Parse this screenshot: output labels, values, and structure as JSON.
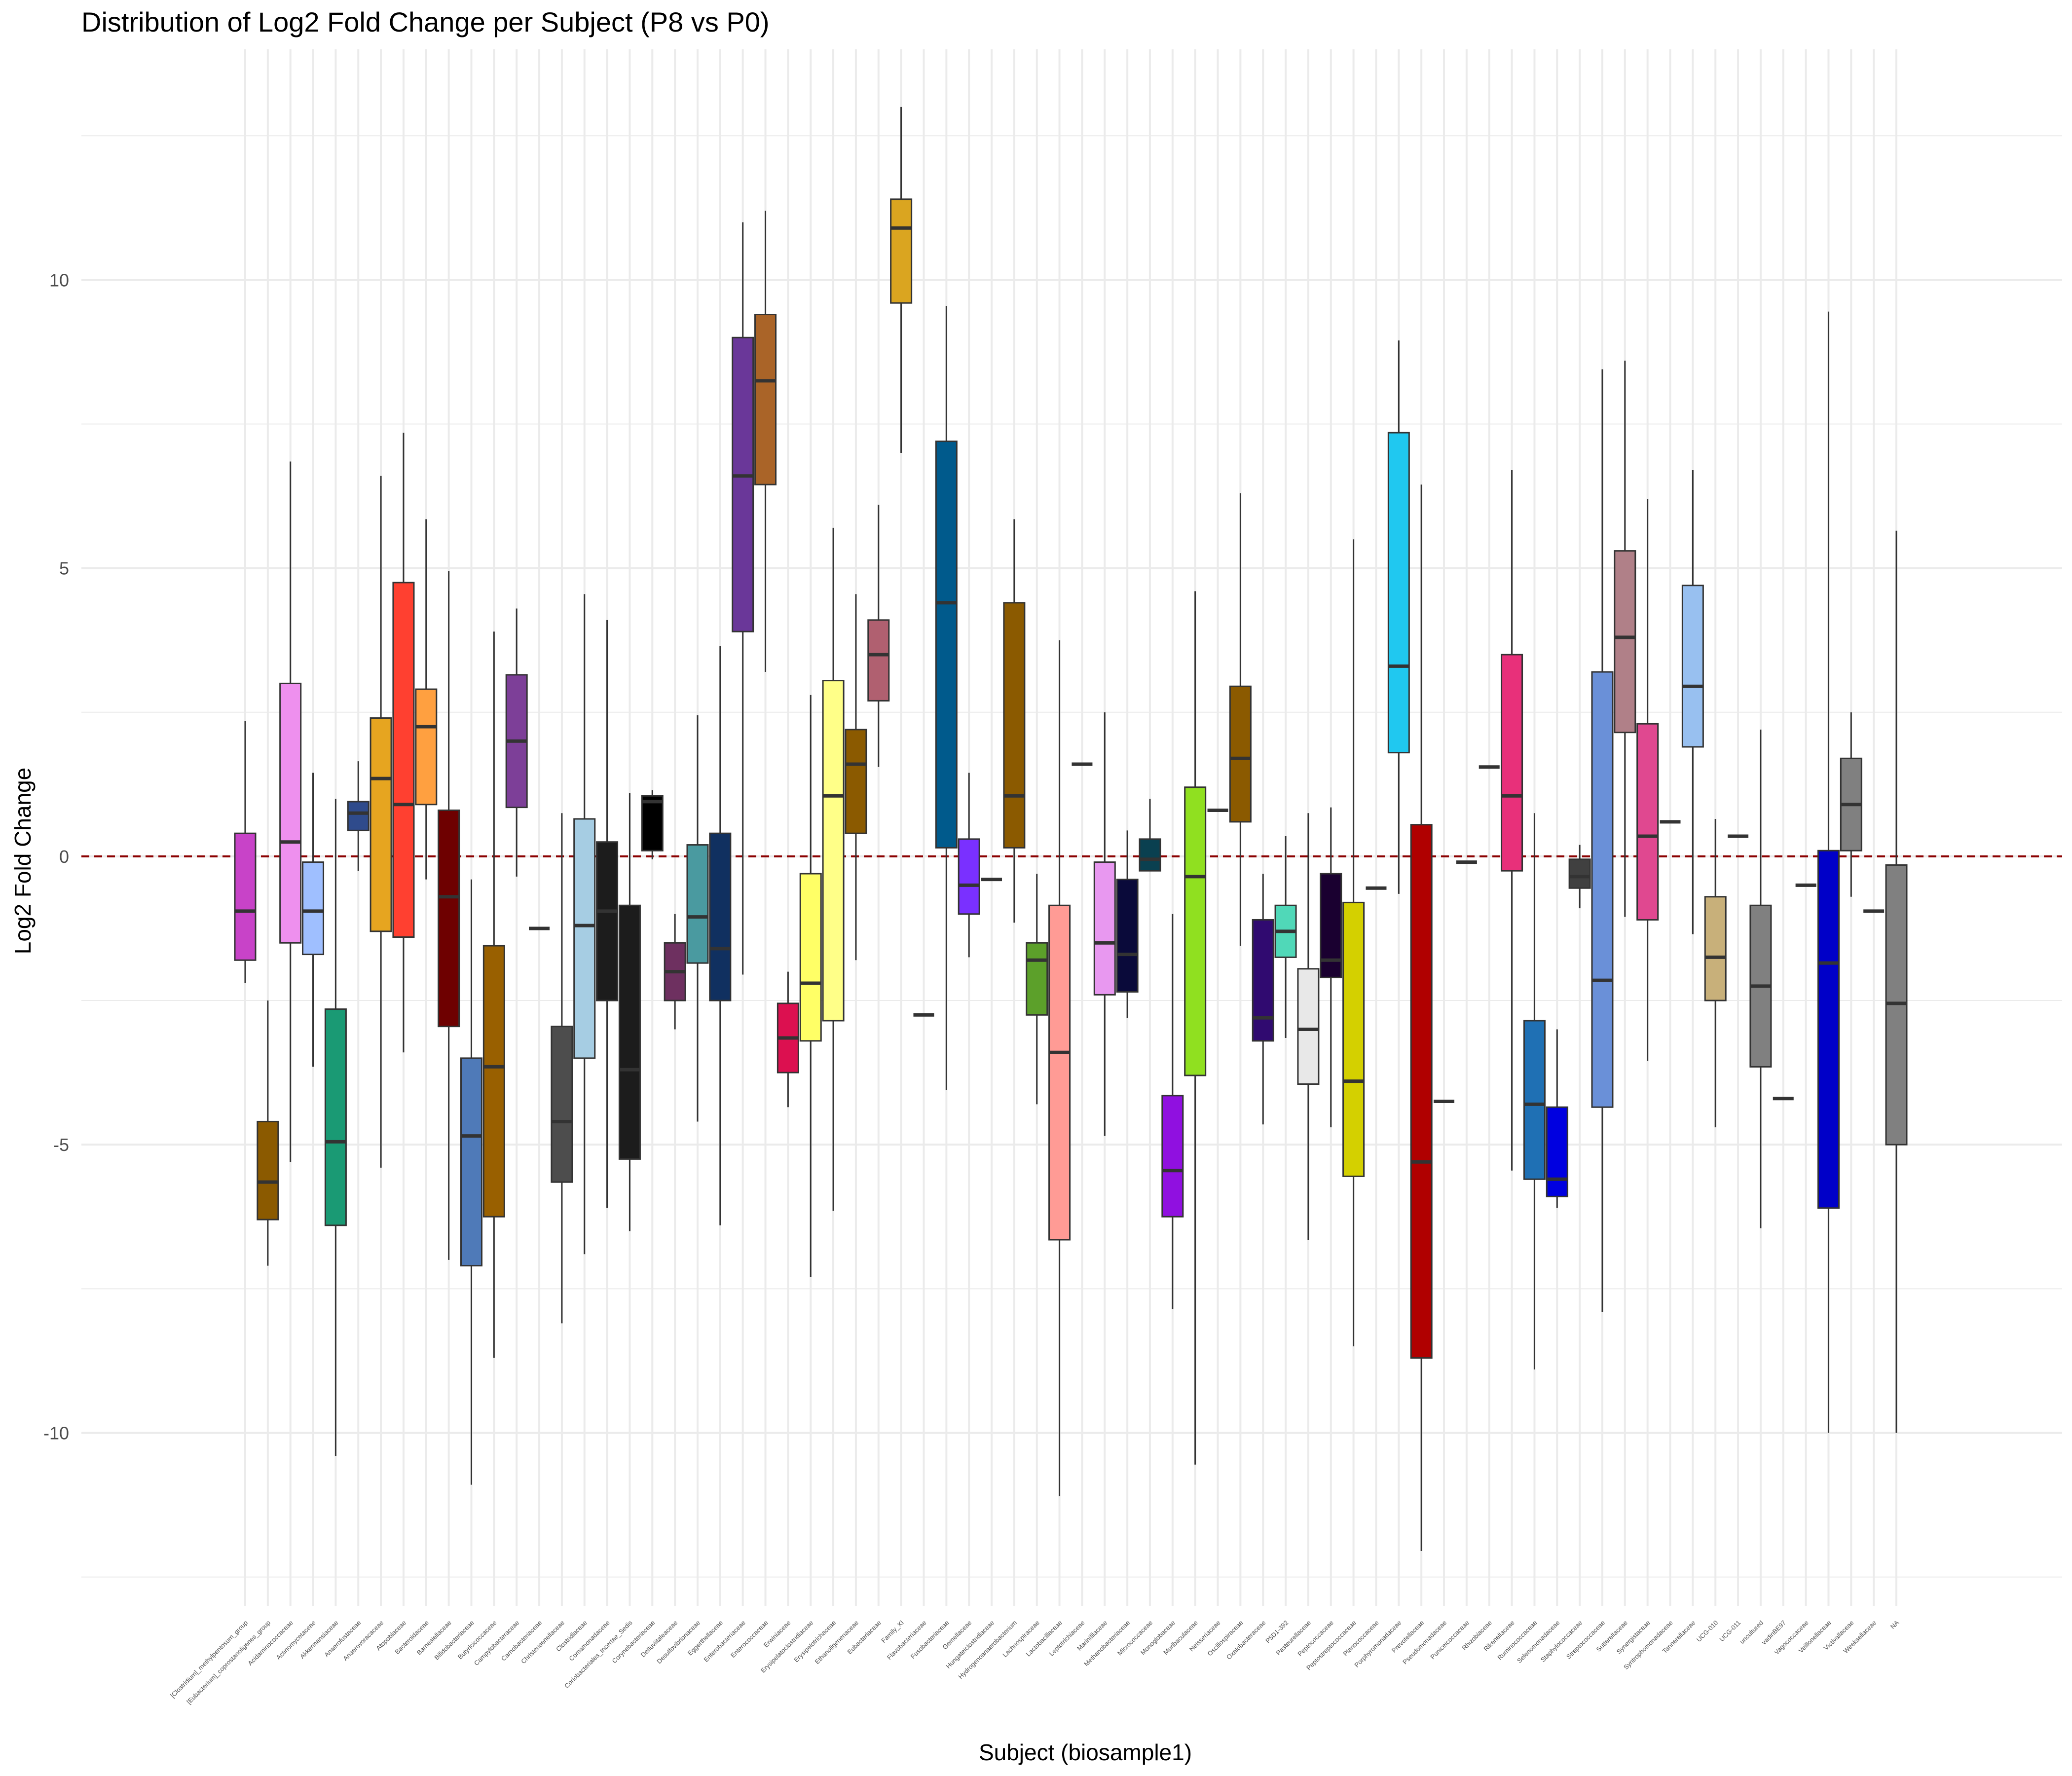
{
  "chart_data": {
    "type": "box",
    "title": "Distribution of Log2 Fold Change per Subject (P8 vs P0)",
    "xlabel": "Subject (biosample1)",
    "ylabel": "Log2 Fold Change",
    "ylim": [
      -13,
      14
    ],
    "yticks": [
      -10,
      -5,
      0,
      5,
      10
    ],
    "grid": true,
    "legend": "none",
    "reference_line": {
      "y": 0,
      "style": "dashed",
      "color": "#8b0000"
    },
    "boxes": [
      {
        "category": "[Clostridium]_methylpentosum_group",
        "color": "#c843c8",
        "min": -2.2,
        "q1": -1.8,
        "median": -0.95,
        "q3": 0.4,
        "max": 2.35
      },
      {
        "category": "[Eubacterium]_coprostanoligenes_group",
        "color": "#8b5a00",
        "min": -7.1,
        "q1": -6.3,
        "median": -5.65,
        "q3": -4.6,
        "max": -2.5
      },
      {
        "category": "Acidaminococcaceae",
        "color": "#ee90ee",
        "min": -5.3,
        "q1": -1.5,
        "median": 0.25,
        "q3": 3.0,
        "max": 6.85
      },
      {
        "category": "Actinomycetaceae",
        "color": "#9fbfff",
        "min": -3.65,
        "q1": -1.7,
        "median": -0.95,
        "q3": -0.1,
        "max": 1.45
      },
      {
        "category": "Akkermansiaceae",
        "color": "#1a9a74",
        "min": -10.4,
        "q1": -6.4,
        "median": -4.95,
        "q3": -2.65,
        "max": 1.0
      },
      {
        "category": "Anaerofustaceae",
        "color": "#2f4b8c",
        "min": -0.25,
        "q1": 0.45,
        "median": 0.75,
        "q3": 0.95,
        "max": 1.65
      },
      {
        "category": "Anaerovoracaceae",
        "color": "#e6a520",
        "min": -5.4,
        "q1": -1.3,
        "median": 1.35,
        "q3": 2.4,
        "max": 6.6
      },
      {
        "category": "Atopobiaceae",
        "color": "#ff4030",
        "min": -3.4,
        "q1": -1.4,
        "median": 0.9,
        "q3": 4.75,
        "max": 7.35
      },
      {
        "category": "Bacteroidaceae",
        "color": "#ffa040",
        "min": -0.4,
        "q1": 0.9,
        "median": 2.25,
        "q3": 2.9,
        "max": 5.85
      },
      {
        "category": "Barnesiellaceae",
        "color": "#6e0000",
        "min": -7.0,
        "q1": -2.95,
        "median": -0.7,
        "q3": 0.8,
        "max": 4.95
      },
      {
        "category": "Bifidobacteriaceae",
        "color": "#4f7ab8",
        "min": -10.9,
        "q1": -7.1,
        "median": -4.85,
        "q3": -3.5,
        "max": -0.4
      },
      {
        "category": "Butyricicoccaceae",
        "color": "#996000",
        "min": -8.7,
        "q1": -6.25,
        "median": -3.65,
        "q3": -1.55,
        "max": 3.9
      },
      {
        "category": "Campylobacteraceae",
        "color": "#7d3f98",
        "min": -0.35,
        "q1": 0.85,
        "median": 2.0,
        "q3": 3.15,
        "max": 4.3
      },
      {
        "category": "Carnobacteriaceae",
        "color": "#000000",
        "min": -1.25,
        "q1": -1.25,
        "median": -1.25,
        "q3": -1.25,
        "max": -1.25
      },
      {
        "category": "Christensenellaceae",
        "color": "#4d4d4d",
        "min": -8.1,
        "q1": -5.65,
        "median": -4.6,
        "q3": -2.95,
        "max": 0.75
      },
      {
        "category": "Clostridiaceae",
        "color": "#a6cde3",
        "min": -6.9,
        "q1": -3.5,
        "median": -1.2,
        "q3": 0.65,
        "max": 4.55
      },
      {
        "category": "Comamonadaceae",
        "color": "#1c1c1c",
        "min": -6.1,
        "q1": -2.5,
        "median": -0.95,
        "q3": 0.25,
        "max": 4.1
      },
      {
        "category": "Coriobacteriales_Incertae_Sedis",
        "color": "#1c1c1c",
        "min": -6.5,
        "q1": -5.25,
        "median": -3.7,
        "q3": -0.85,
        "max": 1.1
      },
      {
        "category": "Corynebacteriaceae",
        "color": "#000000",
        "min": -0.05,
        "q1": 0.1,
        "median": 0.95,
        "q3": 1.05,
        "max": 1.15
      },
      {
        "category": "Defluviitaleaceae",
        "color": "#6e3060",
        "min": -3.0,
        "q1": -2.5,
        "median": -2.0,
        "q3": -1.5,
        "max": -1.0
      },
      {
        "category": "Desulfovibrionaceae",
        "color": "#4a9aa0",
        "min": -4.6,
        "q1": -1.85,
        "median": -1.05,
        "q3": 0.2,
        "max": 2.45
      },
      {
        "category": "Eggerthellaceae",
        "color": "#103060",
        "min": -6.4,
        "q1": -2.5,
        "median": -1.6,
        "q3": 0.4,
        "max": 3.65
      },
      {
        "category": "Enterobacteriaceae",
        "color": "#6a3799",
        "min": -2.05,
        "q1": 3.9,
        "median": 6.6,
        "q3": 9.0,
        "max": 11.0
      },
      {
        "category": "Enterococcaceae",
        "color": "#aa6428",
        "min": 3.2,
        "q1": 6.45,
        "median": 8.25,
        "q3": 9.4,
        "max": 11.2
      },
      {
        "category": "Erwiniaceae",
        "color": "#dc1050",
        "min": -4.35,
        "q1": -3.75,
        "median": -3.15,
        "q3": -2.55,
        "max": -2.0
      },
      {
        "category": "Erysipelatoclostridiaceae",
        "color": "#ffff66",
        "min": -7.3,
        "q1": -3.2,
        "median": -2.2,
        "q3": -0.3,
        "max": 2.8
      },
      {
        "category": "Erysipelotrichaceae",
        "color": "#ffff88",
        "min": -6.15,
        "q1": -2.85,
        "median": 1.05,
        "q3": 3.05,
        "max": 5.7
      },
      {
        "category": "Ethanoligenenaceae",
        "color": "#8b5a00",
        "min": -1.8,
        "q1": 0.4,
        "median": 1.6,
        "q3": 2.2,
        "max": 4.55
      },
      {
        "category": "Eubacteriaceae",
        "color": "#b06070",
        "min": 1.55,
        "q1": 2.7,
        "median": 3.5,
        "q3": 4.1,
        "max": 6.1
      },
      {
        "category": "Family_XI",
        "color": "#daa520",
        "min": 7.0,
        "q1": 9.6,
        "median": 10.9,
        "q3": 11.4,
        "max": 13.0
      },
      {
        "category": "Flavobacteriaceae",
        "color": "#000000",
        "min": -2.75,
        "q1": -2.75,
        "median": -2.75,
        "q3": -2.75,
        "max": -2.75
      },
      {
        "category": "Fusobacteriaceae",
        "color": "#005a8c",
        "min": -4.05,
        "q1": 0.15,
        "median": 4.4,
        "q3": 7.2,
        "max": 9.55
      },
      {
        "category": "Gemellaceae",
        "color": "#7a30ff",
        "min": -1.75,
        "q1": -1.0,
        "median": -0.5,
        "q3": 0.3,
        "max": 1.45
      },
      {
        "category": "Hungateiclostridiaceae",
        "color": "#000000",
        "min": -0.4,
        "q1": -0.4,
        "median": -0.4,
        "q3": -0.4,
        "max": -0.4
      },
      {
        "category": "Hydrogenoanaerobacterium",
        "color": "#8b5a00",
        "min": -1.15,
        "q1": 0.15,
        "median": 1.05,
        "q3": 4.4,
        "max": 5.85
      },
      {
        "category": "Lachnospiraceae",
        "color": "#5ca02a",
        "min": -4.3,
        "q1": -2.75,
        "median": -1.8,
        "q3": -1.5,
        "max": -0.3
      },
      {
        "category": "Lactobacillaceae",
        "color": "#ff9b95",
        "min": -11.1,
        "q1": -6.65,
        "median": -3.4,
        "q3": -0.85,
        "max": 3.75
      },
      {
        "category": "Leptotrichiaceae",
        "color": "#000000",
        "min": 1.6,
        "q1": 1.6,
        "median": 1.6,
        "q3": 1.6,
        "max": 1.6
      },
      {
        "category": "Marinifilaceae",
        "color": "#e898f0",
        "min": -4.85,
        "q1": -2.4,
        "median": -1.5,
        "q3": -0.1,
        "max": 2.5
      },
      {
        "category": "Methanobacteriaceae",
        "color": "#0a0a3a",
        "min": -2.8,
        "q1": -2.35,
        "median": -1.7,
        "q3": -0.4,
        "max": 0.45
      },
      {
        "category": "Micrococcaceae",
        "color": "#0a4050",
        "min": -0.25,
        "q1": -0.25,
        "median": -0.05,
        "q3": 0.3,
        "max": 1.0
      },
      {
        "category": "Monoglobaceae",
        "color": "#9010e0",
        "min": -7.85,
        "q1": -6.25,
        "median": -5.45,
        "q3": -4.15,
        "max": -1.0
      },
      {
        "category": "Muribaculaceae",
        "color": "#90e020",
        "min": -10.55,
        "q1": -3.8,
        "median": -0.35,
        "q3": 1.2,
        "max": 4.6
      },
      {
        "category": "Neisseriaceae",
        "color": "#000000",
        "min": 0.8,
        "q1": 0.8,
        "median": 0.8,
        "q3": 0.8,
        "max": 0.8
      },
      {
        "category": "Oscillospiraceae",
        "color": "#8b5a00",
        "min": -1.55,
        "q1": 0.6,
        "median": 1.7,
        "q3": 2.95,
        "max": 6.3
      },
      {
        "category": "Oxalobacteraceae",
        "color": "#300a70",
        "min": -4.65,
        "q1": -3.2,
        "median": -2.8,
        "q3": -1.1,
        "max": -0.3
      },
      {
        "category": "P5D1-392",
        "color": "#50d8b8",
        "min": -3.15,
        "q1": -1.75,
        "median": -1.3,
        "q3": -0.85,
        "max": 0.35
      },
      {
        "category": "Pasteurellaceae",
        "color": "#e8e8e8",
        "min": -6.65,
        "q1": -3.95,
        "median": -3.0,
        "q3": -1.95,
        "max": 0.75
      },
      {
        "category": "Peptococcaceae",
        "color": "#1a0030",
        "min": -4.7,
        "q1": -2.1,
        "median": -1.8,
        "q3": -0.3,
        "max": 0.85
      },
      {
        "category": "Peptostreptococcaceae",
        "color": "#d4d000",
        "min": -8.5,
        "q1": -5.55,
        "median": -3.9,
        "q3": -0.8,
        "max": 5.5
      },
      {
        "category": "Planococcaceae",
        "color": "#000000",
        "min": -0.55,
        "q1": -0.55,
        "median": -0.55,
        "q3": -0.55,
        "max": -0.55
      },
      {
        "category": "Porphyromonadaceae",
        "color": "#20c8f0",
        "min": -0.65,
        "q1": 1.8,
        "median": 3.3,
        "q3": 7.35,
        "max": 8.95
      },
      {
        "category": "Prevotellaceae",
        "color": "#b00000",
        "min": -12.05,
        "q1": -8.7,
        "median": -5.3,
        "q3": 0.55,
        "max": 6.45
      },
      {
        "category": "Pseudomonadaceae",
        "color": "#000000",
        "min": -4.25,
        "q1": -4.25,
        "median": -4.25,
        "q3": -4.25,
        "max": -4.25
      },
      {
        "category": "Puniceicoccaceae",
        "color": "#000000",
        "min": -0.1,
        "q1": -0.1,
        "median": -0.1,
        "q3": -0.1,
        "max": -0.1
      },
      {
        "category": "Rhizobiaceae",
        "color": "#000000",
        "min": 1.55,
        "q1": 1.55,
        "median": 1.55,
        "q3": 1.55,
        "max": 1.55
      },
      {
        "category": "Rikenellaceae",
        "color": "#e8307a",
        "min": -5.45,
        "q1": -0.25,
        "median": 1.05,
        "q3": 3.5,
        "max": 6.7
      },
      {
        "category": "Ruminococcaceae",
        "color": "#1f70b4",
        "min": -8.9,
        "q1": -5.6,
        "median": -4.3,
        "q3": -2.85,
        "max": 0.75
      },
      {
        "category": "Selenomonadaceae",
        "color": "#0000e0",
        "min": -6.1,
        "q1": -5.9,
        "median": -5.6,
        "q3": -4.35,
        "max": -3.0
      },
      {
        "category": "Staphylococcaceae",
        "color": "#404040",
        "min": -0.9,
        "q1": -0.55,
        "median": -0.35,
        "q3": -0.05,
        "max": 0.2
      },
      {
        "category": "Streptococcaceae",
        "color": "#6a90d8",
        "min": -7.9,
        "q1": -4.35,
        "median": -2.15,
        "q3": 3.2,
        "max": 8.45
      },
      {
        "category": "Sutterellaceae",
        "color": "#b08088",
        "min": -1.05,
        "q1": 2.15,
        "median": 3.8,
        "q3": 5.3,
        "max": 8.6
      },
      {
        "category": "Synergistaceae",
        "color": "#e04890",
        "min": -3.55,
        "q1": -1.1,
        "median": 0.35,
        "q3": 2.3,
        "max": 6.2
      },
      {
        "category": "Syntrophomonadaceae",
        "color": "#000000",
        "min": 0.6,
        "q1": 0.6,
        "median": 0.6,
        "q3": 0.6,
        "max": 0.6
      },
      {
        "category": "Tannerellaceae",
        "color": "#98c0f0",
        "min": -1.35,
        "q1": 1.9,
        "median": 2.95,
        "q3": 4.7,
        "max": 6.7
      },
      {
        "category": "UCG-010",
        "color": "#c8b07a",
        "min": -4.7,
        "q1": -2.5,
        "median": -1.75,
        "q3": -0.7,
        "max": 0.65
      },
      {
        "category": "UCG-011",
        "color": "#000000",
        "min": 0.35,
        "q1": 0.35,
        "median": 0.35,
        "q3": 0.35,
        "max": 0.35
      },
      {
        "category": "uncultured",
        "color": "#808080",
        "min": -6.45,
        "q1": -3.65,
        "median": -2.25,
        "q3": -0.85,
        "max": 2.2
      },
      {
        "category": "vadinBE97",
        "color": "#000000",
        "min": -4.2,
        "q1": -4.2,
        "median": -4.2,
        "q3": -4.2,
        "max": -4.2
      },
      {
        "category": "Vagococcaceae",
        "color": "#000000",
        "min": -0.5,
        "q1": -0.5,
        "median": -0.5,
        "q3": -0.5,
        "max": -0.5
      },
      {
        "category": "Veillonellaceae",
        "color": "#0000c8",
        "min": -10.0,
        "q1": -6.1,
        "median": -1.85,
        "q3": 0.1,
        "max": 9.45
      },
      {
        "category": "Victivallaceae",
        "color": "#808080",
        "min": -0.7,
        "q1": 0.1,
        "median": 0.9,
        "q3": 1.7,
        "max": 2.5
      },
      {
        "category": "Weeksellaceae",
        "color": "#000000",
        "min": -0.95,
        "q1": -0.95,
        "median": -0.95,
        "q3": -0.95,
        "max": -0.95
      },
      {
        "category": "NA",
        "color": "#808080",
        "min": -10.0,
        "q1": -5.0,
        "median": -2.55,
        "q3": -0.15,
        "max": 5.65
      }
    ]
  }
}
